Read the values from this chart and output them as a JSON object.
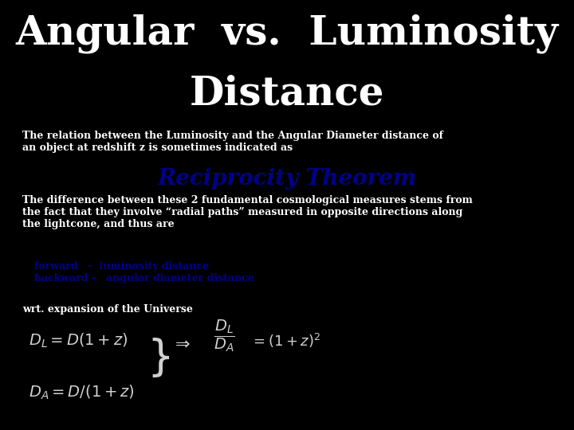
{
  "title_line1": "Angular  vs.  Luminosity",
  "title_line2": "Distance",
  "title_color": "#ffffff",
  "title_bg": "#000000",
  "title_fontsize": 36,
  "body_bg": "#808080",
  "body_text_color": "#ffffff",
  "body_fontsize": 11,
  "subtitle_text": "The relation between the Luminosity and the Angular Diameter distance of\nan object at redshift z is sometimes indicated as",
  "reciprocity_title": "Reciprocity Theorem",
  "reciprocity_color": "#00008B",
  "reciprocity_fontsize": 20,
  "diff_text": "The difference between these 2 fundamental cosmological measures stems from\nthe fact that they involve “radial paths” measured in opposite directions along\nthe lightcone, and thus are",
  "lower_bg": "#707070",
  "forward_text": "forward   -  luminosity distance\nbackward -   angular diameter distance",
  "forward_color": "#00008B",
  "wrt_text": "wrt. expansion of the Universe",
  "wrt_color": "#ffffff",
  "eq1": "$D_L = D(1+z)$",
  "eq2": "$D_A = D/(1+z)$",
  "eq3": "$\\\\Rightarrow \\\\dfrac{D_L}{D_A} = (1+z)^2$",
  "eq_color": "#c8c8c8",
  "image_placeholder_color": "#d8d8c8"
}
